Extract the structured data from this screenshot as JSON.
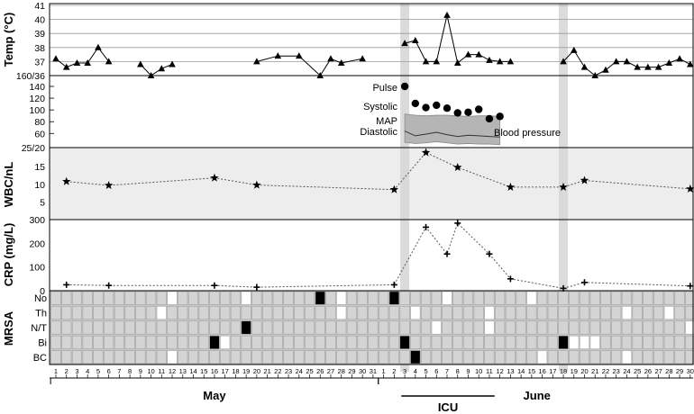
{
  "chart_data": {
    "type": "multi-panel timeline",
    "dates": [
      "1",
      "2",
      "3",
      "4",
      "5",
      "6",
      "7",
      "8",
      "9",
      "10",
      "11",
      "12",
      "13",
      "14",
      "15",
      "16",
      "17",
      "18",
      "19",
      "20",
      "21",
      "22",
      "23",
      "24",
      "25",
      "26",
      "27",
      "28",
      "29",
      "30",
      "31",
      "1",
      "2",
      "3",
      "4",
      "5",
      "6",
      "7",
      "8",
      "9",
      "10",
      "11",
      "12",
      "13",
      "14",
      "15",
      "16",
      "17",
      "18",
      "19",
      "20",
      "21",
      "22",
      "23",
      "24",
      "25",
      "26",
      "27",
      "28",
      "29",
      "30"
    ],
    "months": [
      {
        "label": "May",
        "from": 0,
        "to": 30
      },
      {
        "label": "June",
        "from": 31,
        "to": 60
      }
    ],
    "icu": {
      "label": "ICU",
      "from": 33,
      "to": 41
    },
    "highlight_days": [
      33,
      48
    ],
    "panels": {
      "temp": {
        "ylabel": "Temp (°C)",
        "ticks": [
          "41",
          "40",
          "39",
          "38",
          "37",
          "160/36"
        ],
        "ylim": [
          36,
          41
        ],
        "series": [
          [
            0,
            37.2
          ],
          [
            1,
            36.6
          ],
          [
            2,
            36.9
          ],
          [
            3,
            36.9
          ],
          [
            4,
            38.0
          ],
          [
            5,
            37.0
          ],
          [
            8,
            36.8
          ],
          [
            9,
            36.0
          ],
          [
            10,
            36.5
          ],
          [
            11,
            36.8
          ],
          [
            19,
            37.0
          ],
          [
            21,
            37.4
          ],
          [
            23,
            37.4
          ],
          [
            25,
            36.0
          ],
          [
            26,
            37.2
          ],
          [
            27,
            36.9
          ],
          [
            29,
            37.2
          ],
          [
            33,
            38.3
          ],
          [
            34,
            38.5
          ],
          [
            35,
            37.0
          ],
          [
            36,
            37.0
          ],
          [
            37,
            40.3
          ],
          [
            38,
            36.9
          ],
          [
            39,
            37.5
          ],
          [
            40,
            37.5
          ],
          [
            41,
            37.1
          ],
          [
            42,
            37.0
          ],
          [
            43,
            37.0
          ],
          [
            48,
            37.0
          ],
          [
            49,
            37.8
          ],
          [
            50,
            36.6
          ],
          [
            51,
            36.0
          ],
          [
            52,
            36.4
          ],
          [
            53,
            37.0
          ],
          [
            54,
            37.0
          ],
          [
            55,
            36.6
          ],
          [
            56,
            36.6
          ],
          [
            57,
            36.6
          ],
          [
            58,
            36.9
          ],
          [
            59,
            37.2
          ],
          [
            60,
            36.8
          ]
        ]
      },
      "vitals": {
        "ticks": [
          "140",
          "120",
          "100",
          "80",
          "60"
        ],
        "ylim": [
          36,
          160
        ],
        "pulse_label": "Pulse",
        "systolic_label": "Systolic",
        "map_label": "MAP",
        "diastolic_label": "Diastolic",
        "bp_label": "Blood pressure",
        "pulse": [
          [
            33,
            140
          ],
          [
            34,
            111
          ],
          [
            35,
            104
          ],
          [
            36,
            108
          ],
          [
            37,
            103
          ],
          [
            38,
            95
          ],
          [
            39,
            96
          ],
          [
            40,
            101
          ],
          [
            41,
            85
          ],
          [
            42,
            89
          ]
        ],
        "systolic": [
          [
            33,
            93
          ],
          [
            34,
            91
          ],
          [
            35,
            90
          ],
          [
            36,
            91
          ],
          [
            37,
            91
          ],
          [
            38,
            90
          ],
          [
            39,
            89
          ],
          [
            40,
            90
          ],
          [
            41,
            90
          ],
          [
            42,
            89
          ]
        ],
        "map": [
          [
            33,
            64
          ],
          [
            34,
            56
          ],
          [
            35,
            59
          ],
          [
            36,
            62
          ],
          [
            37,
            58
          ],
          [
            38,
            55
          ],
          [
            39,
            57
          ],
          [
            40,
            56
          ],
          [
            41,
            55
          ],
          [
            42,
            54
          ]
        ],
        "diastolic": [
          [
            33,
            45
          ],
          [
            34,
            43
          ],
          [
            35,
            44
          ],
          [
            36,
            46
          ],
          [
            37,
            44
          ],
          [
            38,
            42
          ],
          [
            39,
            43
          ],
          [
            40,
            42
          ],
          [
            41,
            42
          ],
          [
            42,
            41
          ]
        ]
      },
      "wbc": {
        "ylabel": "WBC/nL",
        "ticks": [
          "25/20",
          "15",
          "10",
          "5"
        ],
        "ylim": [
          0,
          20
        ],
        "series": [
          [
            1,
            10.8
          ],
          [
            5,
            9.7
          ],
          [
            15,
            11.8
          ],
          [
            19,
            9.8
          ],
          [
            32,
            8.5
          ],
          [
            35,
            19.0
          ],
          [
            38,
            14.8
          ],
          [
            43,
            9.2
          ],
          [
            48,
            9.2
          ],
          [
            50,
            11.1
          ],
          [
            60,
            8.7
          ]
        ]
      },
      "crp": {
        "ylabel": "CRP (mg/L)",
        "ticks": [
          "300",
          "200",
          "100",
          "0"
        ],
        "ylim": [
          0,
          300
        ],
        "series": [
          [
            1,
            25
          ],
          [
            5,
            22
          ],
          [
            15,
            22
          ],
          [
            19,
            15
          ],
          [
            32,
            25
          ],
          [
            35,
            268
          ],
          [
            37,
            155
          ],
          [
            38,
            285
          ],
          [
            41,
            155
          ],
          [
            43,
            50
          ],
          [
            48,
            10
          ],
          [
            50,
            35
          ],
          [
            60,
            20
          ]
        ]
      },
      "mrsa": {
        "ylabel": "MRSA",
        "rows": [
          "No",
          "Th",
          "N/T",
          "Bi",
          "BC"
        ],
        "black": [
          [
            0,
            25
          ],
          [
            0,
            32
          ],
          [
            2,
            18
          ],
          [
            3,
            15
          ],
          [
            3,
            33
          ],
          [
            3,
            48
          ],
          [
            4,
            34
          ]
        ],
        "white": [
          [
            0,
            11
          ],
          [
            0,
            18
          ],
          [
            0,
            27
          ],
          [
            0,
            37
          ],
          [
            0,
            45
          ],
          [
            1,
            10
          ],
          [
            1,
            27
          ],
          [
            1,
            34
          ],
          [
            1,
            41
          ],
          [
            1,
            54
          ],
          [
            1,
            58
          ],
          [
            2,
            36
          ],
          [
            2,
            41
          ],
          [
            2,
            60
          ],
          [
            3,
            16
          ],
          [
            3,
            49
          ],
          [
            3,
            50
          ],
          [
            3,
            51
          ],
          [
            4,
            11
          ],
          [
            4,
            46
          ],
          [
            4,
            54
          ]
        ]
      }
    }
  }
}
